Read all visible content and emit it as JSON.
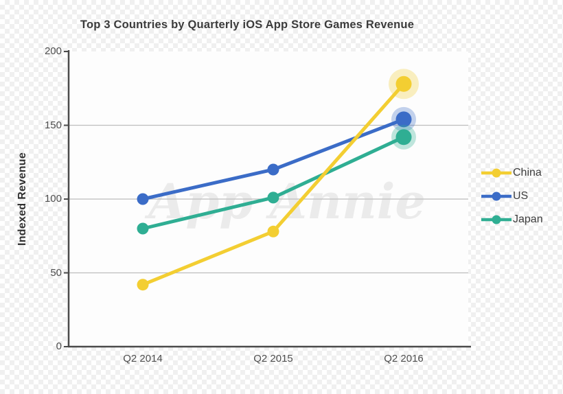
{
  "chart_data": {
    "type": "line",
    "title": "Top 3 Countries by Quarterly iOS App Store Games Revenue",
    "xlabel": "",
    "ylabel": "Indexed Revenue",
    "categories": [
      "Q2 2014",
      "Q2 2015",
      "Q2 2016"
    ],
    "series": [
      {
        "name": "China",
        "color": "#F3CE32",
        "values": [
          42,
          78,
          178
        ]
      },
      {
        "name": "US",
        "color": "#3B6CC7",
        "values": [
          100,
          120,
          154
        ]
      },
      {
        "name": "Japan",
        "color": "#2FAE93",
        "values": [
          80,
          101,
          142
        ]
      }
    ],
    "ylim": [
      0,
      200
    ],
    "yticks": [
      0,
      50,
      100,
      150,
      200
    ],
    "grid": true,
    "gridlines_at": [
      50,
      100,
      150
    ],
    "legend_position": "right",
    "watermark": "App Annie"
  }
}
